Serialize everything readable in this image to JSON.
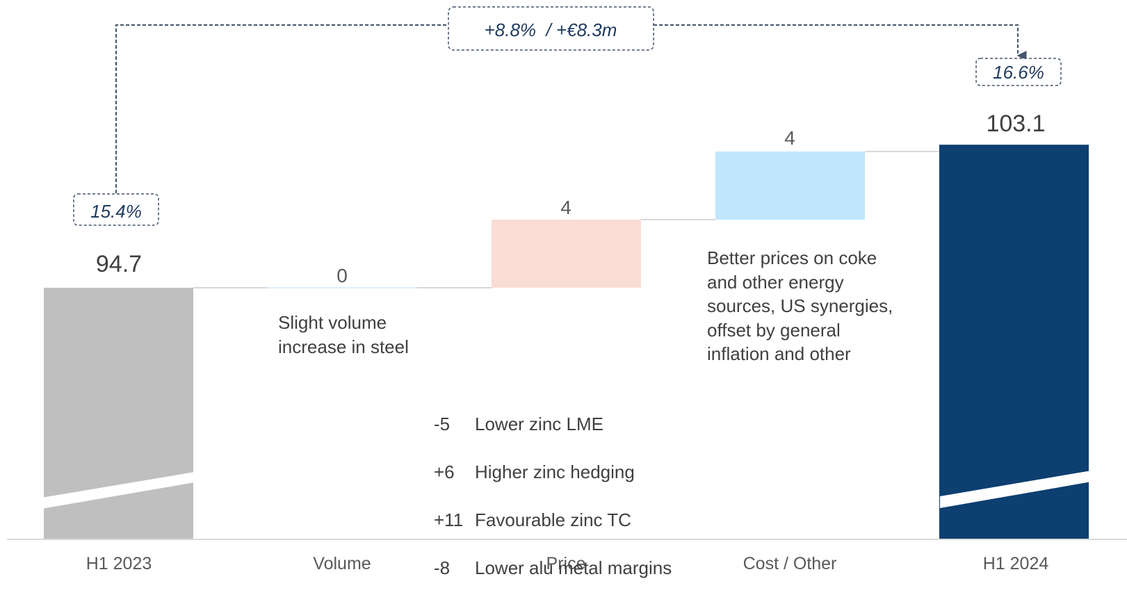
{
  "chart_data": {
    "type": "waterfall",
    "categories": [
      "H1 2023",
      "Volume",
      "Price",
      "Cost / Other",
      "H1 2024"
    ],
    "bars": [
      {
        "category": "H1 2023",
        "kind": "total",
        "value": 94.7,
        "label": "94.7",
        "color": "#bfbfbf"
      },
      {
        "category": "Volume",
        "kind": "delta",
        "value": 0,
        "label": "0",
        "color": "#ddeefc"
      },
      {
        "category": "Price",
        "kind": "delta",
        "value": 4,
        "label": "4",
        "color": "#f9dcd4"
      },
      {
        "category": "Cost / Other",
        "kind": "delta",
        "value": 4,
        "label": "4",
        "color": "#c0e6fc"
      },
      {
        "category": "H1 2024",
        "kind": "total",
        "value": 103.1,
        "label": "103.1",
        "color": "#0d3f70"
      }
    ],
    "axis_break": true,
    "margins": {
      "start": "15.4%",
      "end": "16.6%"
    },
    "growth_label": "+8.8%  / +€8.3m",
    "annotations": {
      "volume": "Slight volume\nincrease in steel",
      "price": [
        {
          "amount": "-5",
          "text": "Lower zinc LME"
        },
        {
          "amount": "+6",
          "text": "Higher zinc hedging"
        },
        {
          "amount": "+11",
          "text": "Favourable zinc TC"
        },
        {
          "amount": "-8",
          "text": "Lower alu metal margins"
        }
      ],
      "cost": "Better prices on coke\nand other energy\nsources, US synergies,\noffset by general\ninflation and other"
    }
  }
}
